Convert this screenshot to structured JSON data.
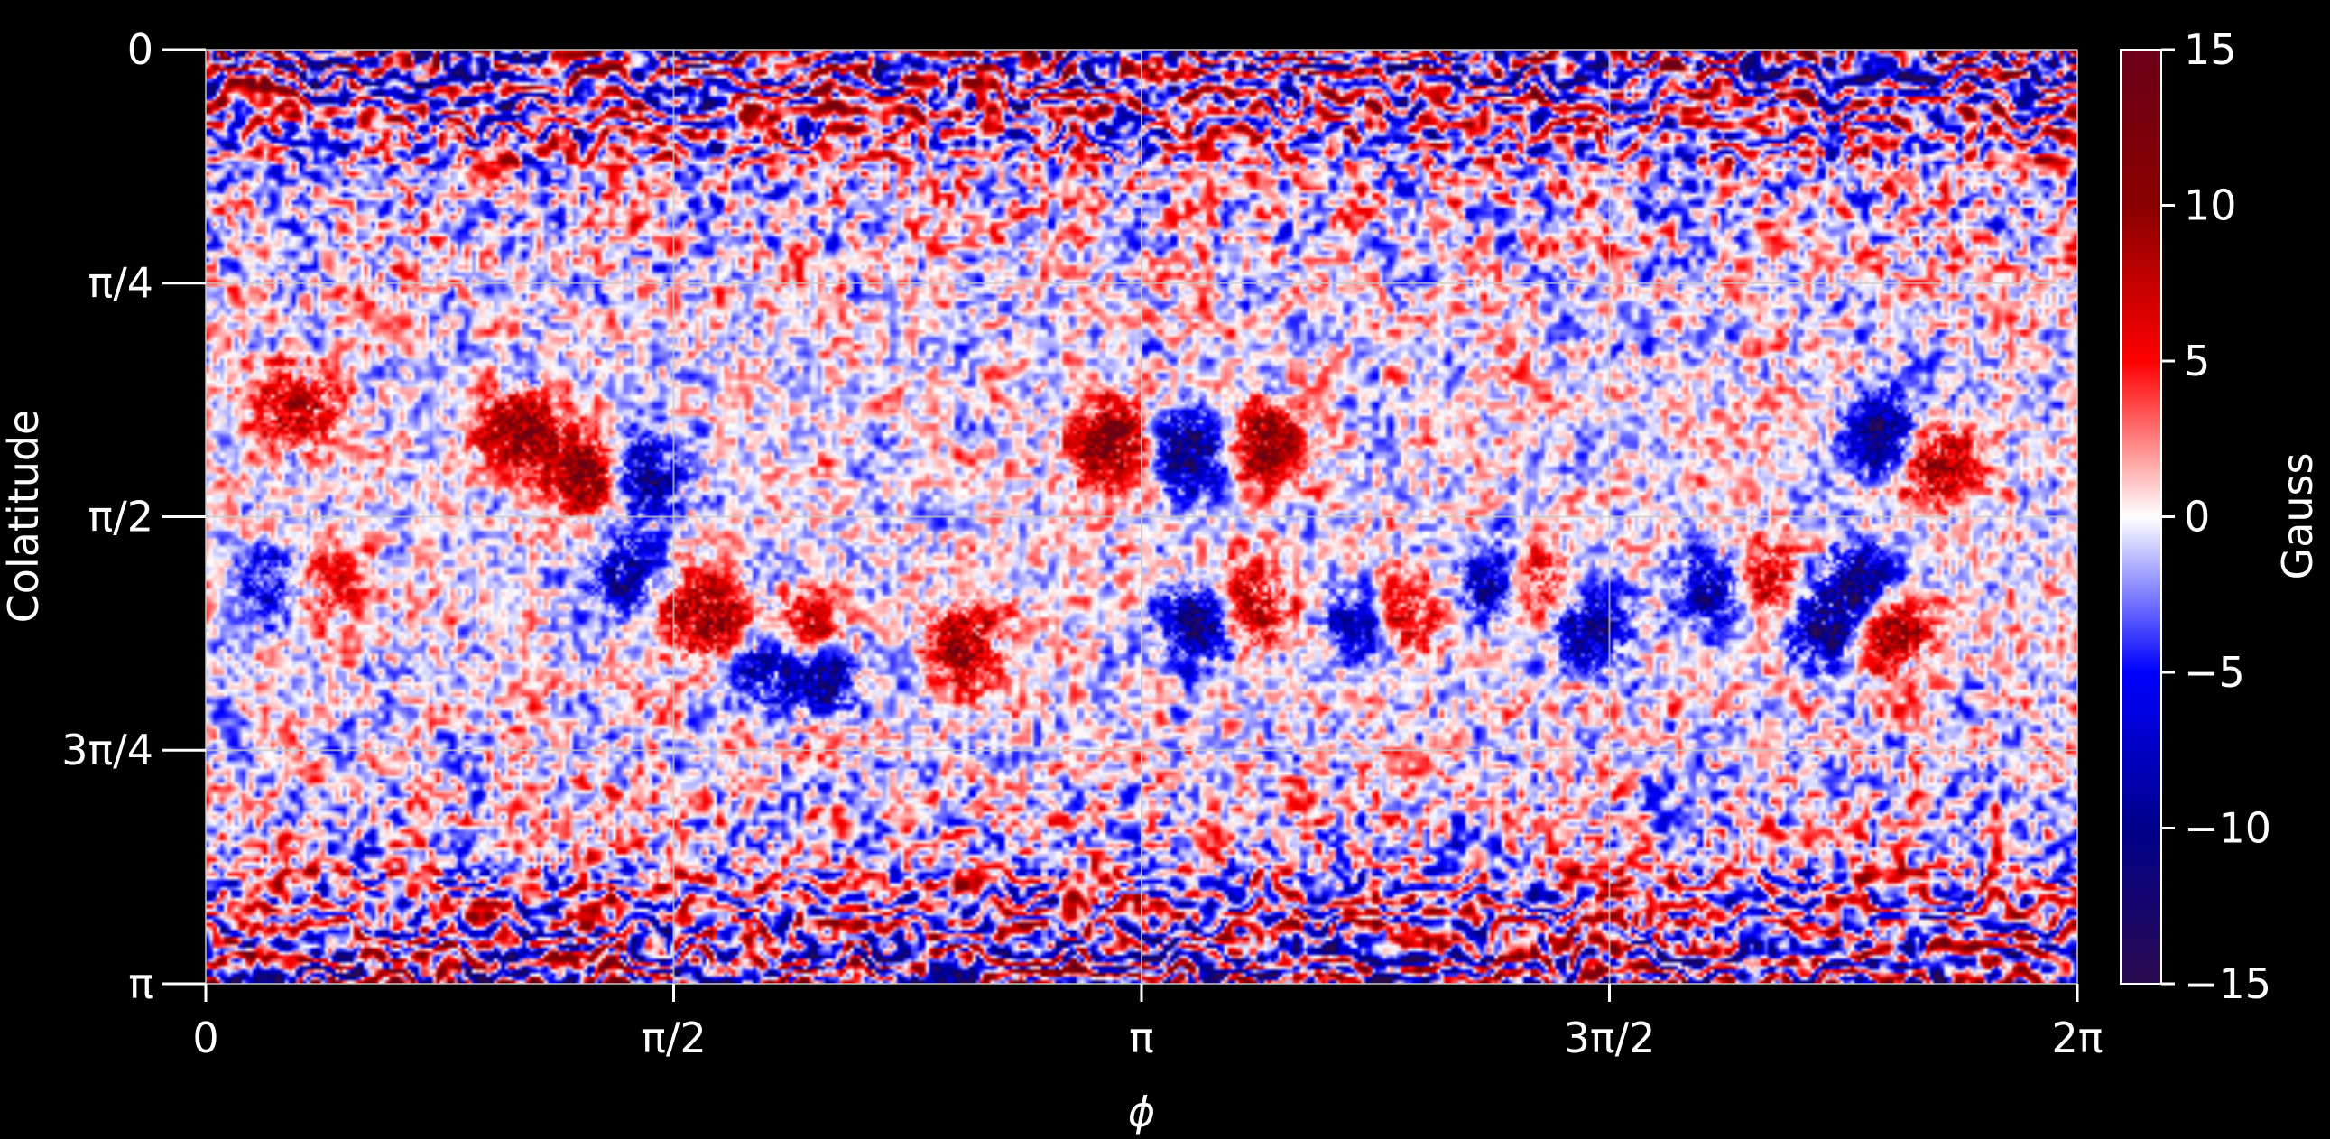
{
  "chart_data": {
    "type": "heatmap",
    "title": "",
    "xlabel": "ϕ",
    "ylabel": "Colatitude",
    "xlim": [
      0,
      6.283185
    ],
    "ylim": [
      0,
      3.141593
    ],
    "y_inverted": true,
    "x_ticks": [
      {
        "value": 0,
        "label": "0"
      },
      {
        "value": 1.570796,
        "label": "π/2"
      },
      {
        "value": 3.141593,
        "label": "π"
      },
      {
        "value": 4.712389,
        "label": "3π/2"
      },
      {
        "value": 6.283185,
        "label": "2π"
      }
    ],
    "y_ticks": [
      {
        "value": 0,
        "label": "0"
      },
      {
        "value": 0.785398,
        "label": "π/4"
      },
      {
        "value": 1.570796,
        "label": "π/2"
      },
      {
        "value": 2.356194,
        "label": "3π/4"
      },
      {
        "value": 3.141593,
        "label": "π"
      }
    ],
    "grid": true,
    "colormap": "seismic",
    "colormap_colors": [
      "#2b0a4e",
      "#00008b",
      "#0000ff",
      "#ffffff",
      "#ff0000",
      "#8b0000",
      "#6b0018"
    ],
    "colorbar": {
      "label": "Gauss",
      "vmin": -15,
      "vmax": 15,
      "ticks": [
        {
          "value": 15,
          "label": "15"
        },
        {
          "value": 10,
          "label": "10"
        },
        {
          "value": 5,
          "label": "5"
        },
        {
          "value": 0,
          "label": "0"
        },
        {
          "value": -5,
          "label": "−5"
        },
        {
          "value": -10,
          "label": "−10"
        },
        {
          "value": -15,
          "label": "−15"
        }
      ]
    },
    "active_regions": [
      {
        "phi": 1.3,
        "theta": 1.43,
        "value": 15
      },
      {
        "phi": 1.45,
        "theta": 1.43,
        "value": -15
      },
      {
        "phi": 1.05,
        "theta": 1.28,
        "value": 12
      },
      {
        "phi": 0.3,
        "theta": 1.2,
        "value": 10
      },
      {
        "phi": 3.05,
        "theta": 1.32,
        "value": 15
      },
      {
        "phi": 3.3,
        "theta": 1.35,
        "value": -15
      },
      {
        "phi": 3.55,
        "theta": 1.32,
        "value": 12
      },
      {
        "phi": 5.65,
        "theta": 1.3,
        "value": -14
      },
      {
        "phi": 5.8,
        "theta": 1.38,
        "value": 13
      },
      {
        "phi": 1.45,
        "theta": 1.78,
        "value": -15
      },
      {
        "phi": 1.55,
        "theta": 1.82,
        "value": 12
      },
      {
        "phi": 1.75,
        "theta": 1.95,
        "value": 14
      },
      {
        "phi": 1.85,
        "theta": 2.02,
        "value": -15
      },
      {
        "phi": 2.0,
        "theta": 1.98,
        "value": 13
      },
      {
        "phi": 2.05,
        "theta": 2.1,
        "value": -13
      },
      {
        "phi": 2.55,
        "theta": 2.0,
        "value": 11
      },
      {
        "phi": 3.35,
        "theta": 1.92,
        "value": -14
      },
      {
        "phi": 3.5,
        "theta": 1.88,
        "value": 12
      },
      {
        "phi": 3.9,
        "theta": 1.92,
        "value": -12
      },
      {
        "phi": 4.0,
        "theta": 1.9,
        "value": 12
      },
      {
        "phi": 4.35,
        "theta": 1.8,
        "value": -13
      },
      {
        "phi": 4.45,
        "theta": 1.8,
        "value": 12
      },
      {
        "phi": 4.65,
        "theta": 1.95,
        "value": -12
      },
      {
        "phi": 5.1,
        "theta": 1.8,
        "value": -14
      },
      {
        "phi": 5.22,
        "theta": 1.78,
        "value": 13
      },
      {
        "phi": 5.55,
        "theta": 1.8,
        "value": -13
      },
      {
        "phi": 5.65,
        "theta": 1.95,
        "value": 13
      },
      {
        "phi": 5.45,
        "theta": 1.95,
        "value": -12
      },
      {
        "phi": 0.25,
        "theta": 1.79,
        "value": -10
      },
      {
        "phi": 0.36,
        "theta": 1.79,
        "value": 9
      }
    ]
  }
}
